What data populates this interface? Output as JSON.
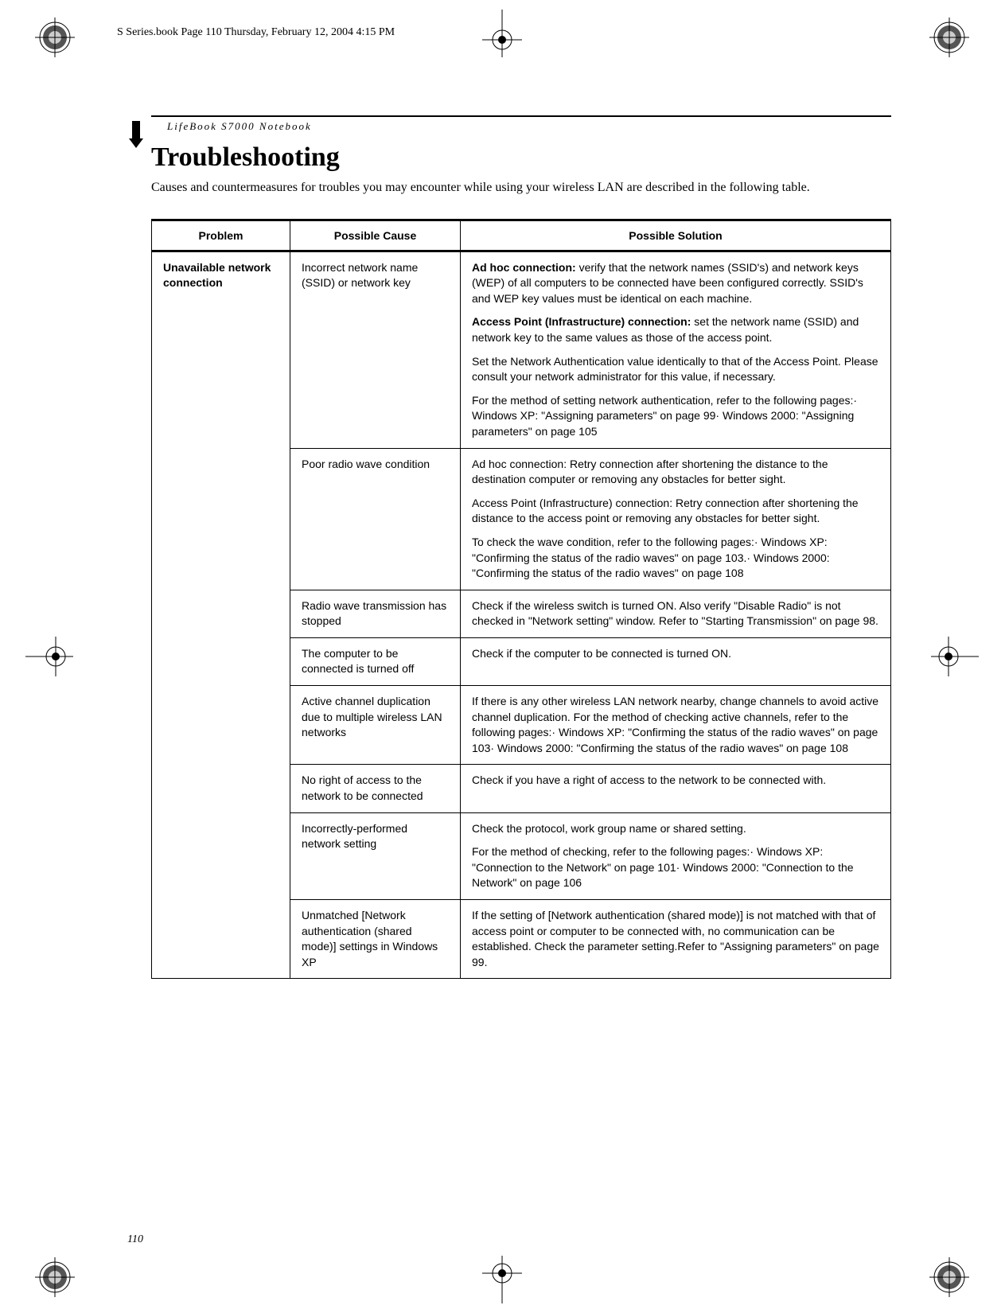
{
  "meta": {
    "header_line": "S Series.book  Page 110  Thursday, February 12, 2004  4:15 PM",
    "running_head": "LifeBook S7000 Notebook",
    "title": "Troubleshooting",
    "intro": "Causes and countermeasures for troubles you may encounter while using your wireless LAN are described in the following table.",
    "page_number": "110"
  },
  "table": {
    "headers": {
      "problem": "Problem",
      "cause": "Possible Cause",
      "solution": "Possible Solution"
    },
    "problem": "Unavailable network connection",
    "rows": [
      {
        "cause": "Incorrect network name (SSID) or network key",
        "solutions": [
          {
            "lead": "Ad hoc connection: ",
            "text": "verify that the network names (SSID's) and network keys (WEP) of all computers to be connected have been configured correctly. SSID's and WEP key values must be identical on each machine."
          },
          {
            "lead": "Access Point (Infrastructure) connection: ",
            "text": "set the network name (SSID) and network key to the same values as those of the access point."
          },
          {
            "lead": "",
            "text": "Set the Network Authentication value identically to that of the Access Point. Please consult your network administrator for this value, if necessary."
          },
          {
            "lead": "",
            "text": "For the method of setting network authentication, refer to the following pages:· Windows XP: \"Assigning parameters\" on page 99· Windows 2000: \"Assigning parameters\" on page 105"
          }
        ]
      },
      {
        "cause": "Poor radio wave condition",
        "solutions": [
          {
            "lead": "",
            "text": "Ad hoc connection: Retry connection after shortening the distance to the destination computer or removing any obstacles for better sight."
          },
          {
            "lead": "",
            "text": "Access Point (Infrastructure) connection: Retry connection after shortening the distance to the access point or removing any obstacles for better sight."
          },
          {
            "lead": "",
            "text": "To check the wave condition, refer to the following pages:· Windows XP: \"Confirming the status of the radio waves\" on page 103.· Windows 2000: \"Confirming the status of the radio waves\" on page 108"
          }
        ]
      },
      {
        "cause": "Radio wave transmission has stopped",
        "solutions": [
          {
            "lead": "",
            "text": "Check if the wireless switch is turned ON. Also verify \"Disable Radio\" is not checked in \"Network setting\" window. Refer to \"Starting Transmission\" on page 98."
          }
        ]
      },
      {
        "cause": "The computer to be connected is turned off",
        "solutions": [
          {
            "lead": "",
            "text": "Check if the computer to be connected is turned ON."
          }
        ]
      },
      {
        "cause": "Active channel duplication due to multiple wireless LAN networks",
        "solutions": [
          {
            "lead": "",
            "text": "If there is any other wireless LAN network nearby, change channels to avoid active channel duplication. For the method of checking active channels, refer to the following pages:· Windows XP: \"Confirming the status of the radio waves\" on page 103· Windows 2000: \"Confirming the status of the radio waves\" on page 108"
          }
        ]
      },
      {
        "cause": "No right of access to the network to be connected",
        "solutions": [
          {
            "lead": "",
            "text": "Check if you have a right of access to the network to be connected with."
          }
        ]
      },
      {
        "cause": "Incorrectly-performed network setting",
        "solutions": [
          {
            "lead": "",
            "text": "Check the protocol, work group name or shared setting."
          },
          {
            "lead": "",
            "text": "For the method of checking, refer to the following pages:· Windows XP: \"Connection to the Network\" on page 101· Windows 2000: \"Connection to the Network\" on page 106"
          }
        ]
      },
      {
        "cause": "Unmatched [Network authentication (shared mode)] settings in Windows XP",
        "solutions": [
          {
            "lead": "",
            "text": "If the setting of [Network authentication (shared mode)] is not matched with that of access point or computer to be connected with, no communication can be established. Check the parameter setting.Refer to \"Assigning parameters\" on page 99."
          }
        ]
      }
    ]
  },
  "print_marks": {
    "crop_color": "#000000",
    "reg_outer": "#000000",
    "reg_inner": "#ffffff"
  }
}
